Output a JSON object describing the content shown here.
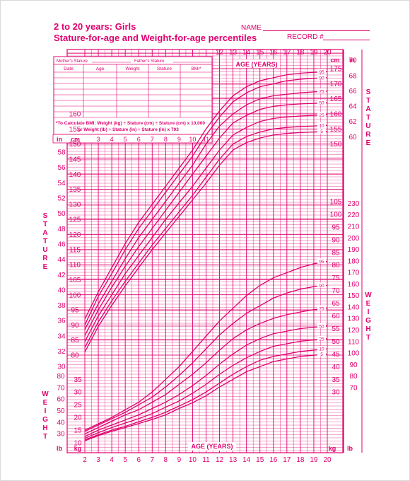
{
  "header": {
    "title_line1": "2 to 20 years: Girls",
    "title_line2": "Stature-for-age and Weight-for-age percentiles",
    "name_label": "NAME",
    "record_label": "RECORD #"
  },
  "record_table": {
    "mother_label": "Mother's Stature",
    "father_label": "Father's Stature",
    "columns": [
      "Date",
      "Age",
      "Weight",
      "Stature",
      "BMI*"
    ],
    "bmi_note_line1": "*To Calculate BMI: Weight (kg) ÷ Stature (cm) ÷ Stature (cm) x 10,000",
    "bmi_note_line2": "or Weight (lb) ÷ Stature (in) ÷ Stature (in) x 703"
  },
  "labels": {
    "age_years": "AGE (YEARS)",
    "stature": "STATURE",
    "weight": "WEIGHT",
    "cm": "cm",
    "in": "in",
    "kg": "kg",
    "lb": "lb"
  },
  "chart_data": [
    {
      "type": "line",
      "title": "Stature-for-age",
      "xlabel": "AGE (YEARS)",
      "ylabel": "STATURE",
      "x": [
        2,
        3,
        4,
        5,
        6,
        7,
        8,
        9,
        10,
        11,
        12,
        13,
        14,
        15,
        16,
        17,
        18,
        19,
        20
      ],
      "xlim": [
        2,
        20
      ],
      "ylim": [
        77,
        177
      ],
      "y_unit": "cm",
      "series": [
        {
          "name": "95",
          "values": [
            92,
            101,
            109,
            117,
            124,
            130,
            136,
            142,
            148,
            155,
            161,
            166,
            169,
            171,
            172,
            173,
            173.5,
            173.8,
            174
          ]
        },
        {
          "name": "90",
          "values": [
            90,
            99.5,
            107,
            115,
            122,
            128,
            134,
            140,
            146,
            153,
            159,
            164,
            167,
            169,
            170,
            171,
            171.5,
            171.8,
            172
          ]
        },
        {
          "name": "75",
          "values": [
            88.5,
            97,
            104.5,
            112,
            119,
            125,
            131,
            137,
            143,
            150,
            156,
            160,
            163,
            165,
            166,
            166.5,
            167,
            167.3,
            167.5
          ]
        },
        {
          "name": "50",
          "values": [
            86.5,
            95,
            102.5,
            109.5,
            116,
            122,
            128,
            134,
            140,
            146,
            152,
            157,
            159.5,
            161.5,
            162.5,
            163,
            163.3,
            163.5,
            163.7
          ]
        },
        {
          "name": "25",
          "values": [
            84.5,
            93,
            100,
            107,
            113,
            119,
            125,
            130.5,
            136,
            142,
            148,
            153,
            155.5,
            157.5,
            158.5,
            159,
            159.3,
            159.5,
            159.7
          ]
        },
        {
          "name": "10",
          "values": [
            82.5,
            91,
            98,
            104.5,
            110.5,
            116.5,
            122,
            127.5,
            133,
            139,
            145,
            150,
            152.5,
            154,
            155,
            155.5,
            155.8,
            156,
            156.2
          ]
        },
        {
          "name": "5",
          "values": [
            81,
            89.5,
            96.5,
            103,
            109,
            115,
            120.5,
            126,
            131.5,
            137,
            143,
            148,
            150.5,
            152,
            153,
            153.5,
            153.8,
            154,
            154.2
          ]
        }
      ]
    },
    {
      "type": "line",
      "title": "Weight-for-age",
      "xlabel": "AGE (YEARS)",
      "ylabel": "WEIGHT",
      "x": [
        2,
        3,
        4,
        5,
        6,
        7,
        8,
        9,
        10,
        11,
        12,
        13,
        14,
        15,
        16,
        17,
        18,
        19,
        20
      ],
      "xlim": [
        2,
        20
      ],
      "ylim": [
        8,
        105
      ],
      "y_unit": "kg",
      "series": [
        {
          "name": "95",
          "values": [
            15,
            17.5,
            20,
            23,
            26,
            30,
            35,
            40,
            46,
            52,
            58,
            63,
            68,
            72,
            75,
            77,
            79,
            80.5,
            81.5
          ]
        },
        {
          "name": "90",
          "values": [
            14.5,
            17,
            19.5,
            22,
            25,
            28,
            32,
            36.5,
            41.5,
            47,
            52.5,
            57,
            61,
            64,
            67,
            69,
            70.5,
            71.5,
            72
          ]
        },
        {
          "name": "75",
          "values": [
            13.5,
            16,
            18.5,
            21,
            23,
            26,
            29,
            33,
            37,
            41.5,
            46.5,
            51,
            54.5,
            57,
            59,
            60.5,
            61.5,
            62.5,
            63
          ]
        },
        {
          "name": "50",
          "values": [
            12.5,
            15,
            17,
            19,
            21,
            23.5,
            26,
            29,
            32.5,
            36.5,
            41,
            45,
            48.5,
            51,
            53,
            54,
            55,
            55.5,
            56
          ]
        },
        {
          "name": "25",
          "values": [
            11.8,
            14,
            16,
            17.8,
            19.5,
            21.5,
            24,
            26.5,
            29.5,
            33,
            37,
            40.5,
            43.5,
            46,
            48,
            49,
            50,
            50.5,
            51
          ]
        },
        {
          "name": "10",
          "values": [
            11.2,
            13.2,
            15,
            16.5,
            18.3,
            20,
            22,
            24.5,
            27,
            30,
            33.5,
            37,
            40,
            42.5,
            44,
            45,
            46,
            46.5,
            47
          ]
        },
        {
          "name": "5",
          "values": [
            10.8,
            12.8,
            14.5,
            16,
            17.6,
            19.2,
            21,
            23.5,
            25.8,
            28.5,
            32,
            35,
            38,
            40,
            42,
            43,
            44,
            44.5,
            45
          ]
        }
      ]
    }
  ]
}
